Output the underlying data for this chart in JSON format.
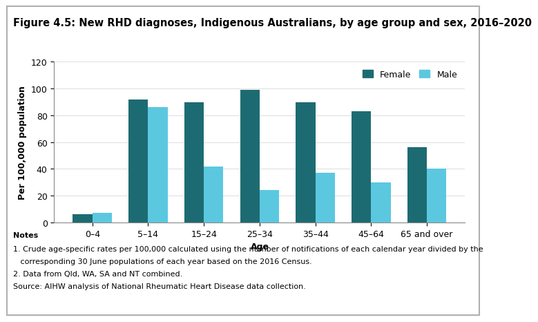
{
  "title": "Figure 4.5: New RHD diagnoses, Indigenous Australians, by age group and sex, 2016–2020",
  "ylabel": "Per 100,000 population",
  "xlabel": "Age",
  "categories": [
    "0–4",
    "5–14",
    "15–24",
    "25–34",
    "35–44",
    "45–64",
    "65 and over"
  ],
  "female_values": [
    6,
    92,
    90,
    99,
    90,
    83,
    56
  ],
  "male_values": [
    7,
    86,
    42,
    24,
    37,
    30,
    40
  ],
  "female_color": "#1d6b72",
  "male_color": "#5bc8e0",
  "ylim": [
    0,
    120
  ],
  "yticks": [
    0,
    20,
    40,
    60,
    80,
    100,
    120
  ],
  "bar_width": 0.35,
  "legend_labels": [
    "Female",
    "Male"
  ],
  "notes_line0": "Notes",
  "notes_line1": "1. Crude age-specific rates per 100,000 calculated using the number of notifications of each calendar year divided by the",
  "notes_line1b": "   corresponding 30 June populations of each year based on the 2016 Census.",
  "notes_line2": "2. Data from Qld, WA, SA and NT combined.",
  "notes_line3": "Source: AIHW analysis of National Rheumatic Heart Disease data collection.",
  "background_color": "#ffffff",
  "border_color": "#b0b0b0",
  "title_fontsize": 10.5,
  "axis_label_fontsize": 9,
  "tick_fontsize": 9,
  "legend_fontsize": 9,
  "notes_fontsize": 8
}
